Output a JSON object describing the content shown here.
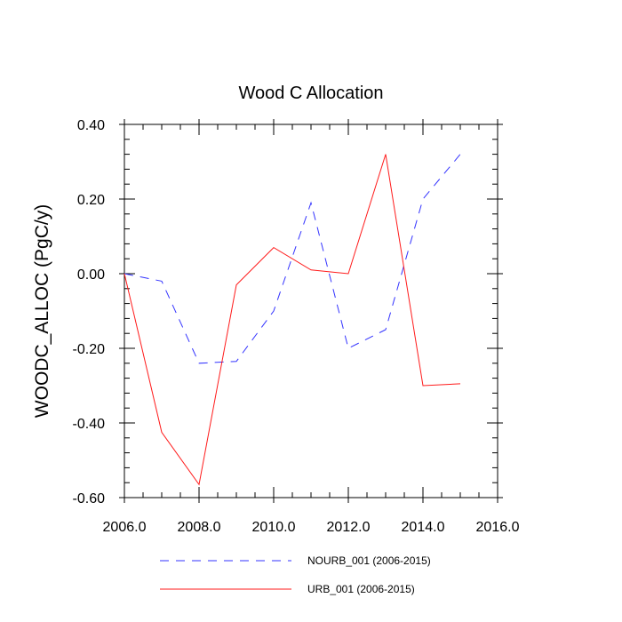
{
  "chart_data": {
    "type": "line",
    "title": "Wood C Allocation",
    "xlabel": "",
    "ylabel": "WOODC_ALLOC  (PgC/y)",
    "xlim": [
      2006,
      2016
    ],
    "ylim": [
      -0.6,
      0.4
    ],
    "xticks": [
      2006,
      2008,
      2010,
      2012,
      2014,
      2016
    ],
    "xtick_labels": [
      "2006.0",
      "2008.0",
      "2010.0",
      "2012.0",
      "2014.0",
      "2016.0"
    ],
    "yticks": [
      -0.6,
      -0.4,
      -0.2,
      0.0,
      0.2,
      0.4
    ],
    "ytick_labels": [
      "-0.60",
      "-0.40",
      "-0.20",
      "0.00",
      "0.20",
      "0.40"
    ],
    "legend_position": "bottom",
    "series": [
      {
        "name": "NOURB_001 (2006-2015)",
        "color": "#3333ff",
        "style": "dashed",
        "x": [
          2006,
          2007,
          2008,
          2009,
          2010,
          2011,
          2012,
          2013,
          2014,
          2015
        ],
        "values": [
          0.0,
          -0.02,
          -0.24,
          -0.235,
          -0.1,
          0.19,
          -0.2,
          -0.15,
          0.2,
          0.32
        ]
      },
      {
        "name": "URB_001 (2006-2015)",
        "color": "#ff1a1a",
        "style": "solid",
        "x": [
          2006,
          2007,
          2008,
          2009,
          2010,
          2011,
          2012,
          2013,
          2014,
          2015
        ],
        "values": [
          0.0,
          -0.425,
          -0.565,
          -0.03,
          0.07,
          0.01,
          0.0,
          0.32,
          -0.3,
          -0.295
        ]
      }
    ]
  }
}
